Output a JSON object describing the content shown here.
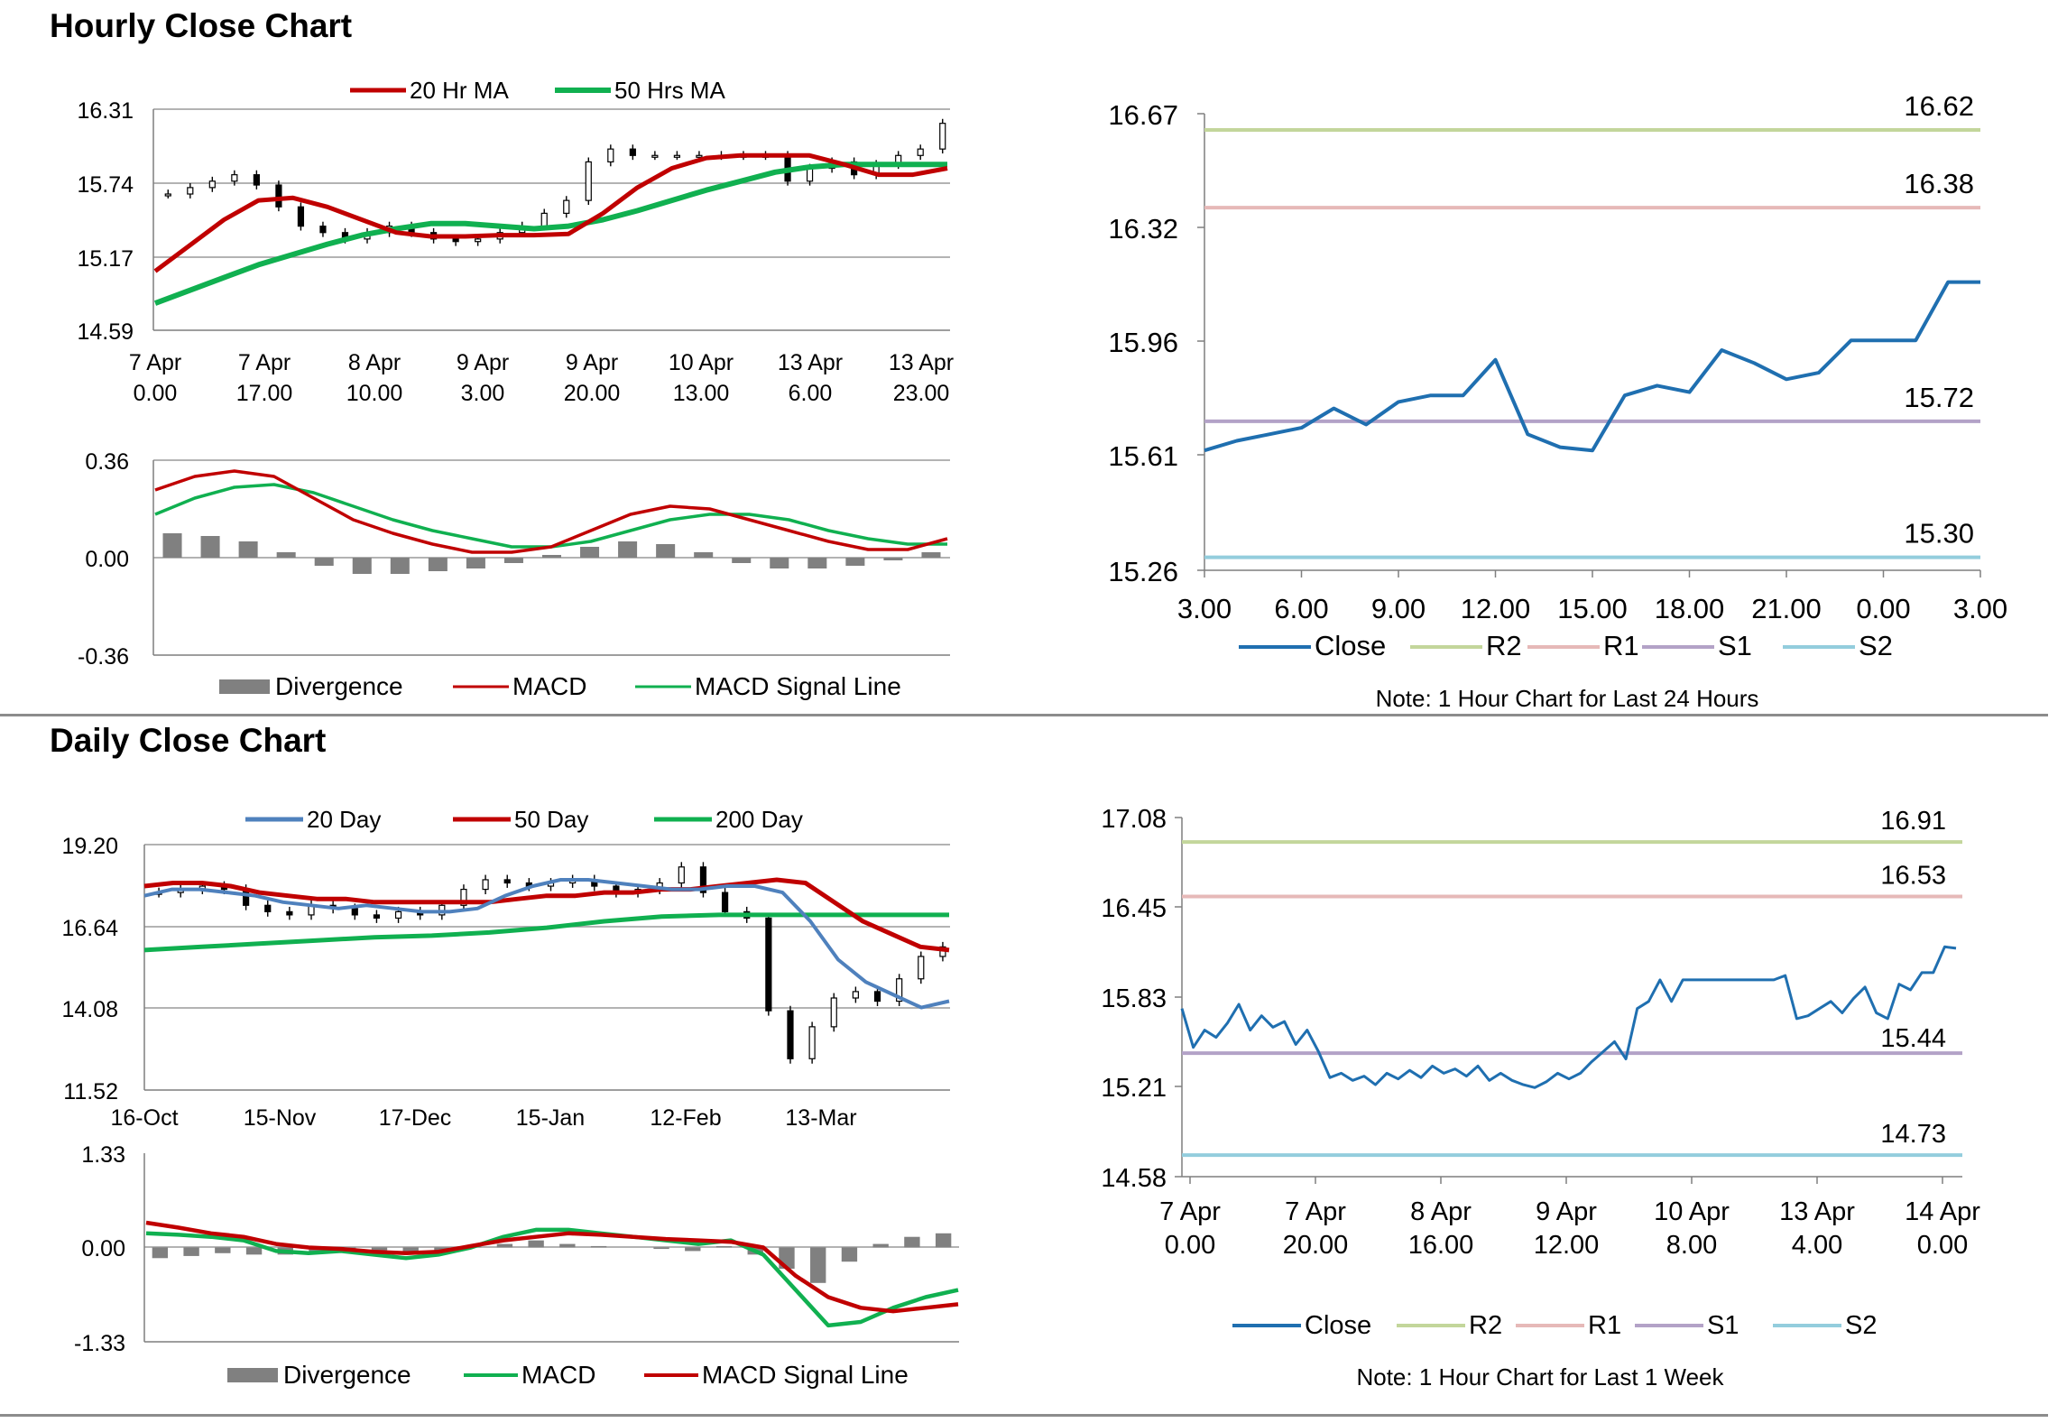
{
  "sections": {
    "hourly_title": "Hourly Close Chart",
    "daily_title": "Daily Close Chart"
  },
  "colors": {
    "red": "#c00000",
    "green": "#10b050",
    "blue": "#4f81bd",
    "close": "#1f6fb0",
    "r2": "#c3d69b",
    "r1": "#e6b9b8",
    "s1": "#b3a2c7",
    "s2": "#93cddd",
    "grey": "#808080"
  },
  "chart_data": [
    {
      "id": "hourly_price",
      "type": "candlestick",
      "legend": [
        "20 Hr MA",
        "50 Hrs MA"
      ],
      "yticks": [
        "16.31",
        "15.74",
        "15.17",
        "14.59"
      ],
      "ylim": [
        14.59,
        16.31
      ],
      "xticks": [
        [
          "7 Apr",
          "0.00"
        ],
        [
          "7 Apr",
          "17.00"
        ],
        [
          "8 Apr",
          "10.00"
        ],
        [
          "9 Apr",
          "3.00"
        ],
        [
          "9 Apr",
          "20.00"
        ],
        [
          "10 Apr",
          "13.00"
        ],
        [
          "13 Apr",
          "6.00"
        ],
        [
          "13 Apr",
          "23.00"
        ]
      ],
      "close": [
        15.65,
        15.7,
        15.75,
        15.8,
        15.72,
        15.55,
        15.4,
        15.35,
        15.3,
        15.35,
        15.4,
        15.35,
        15.3,
        15.28,
        15.3,
        15.35,
        15.4,
        15.5,
        15.6,
        15.9,
        16.0,
        15.95,
        15.95,
        15.95,
        15.95,
        15.95,
        15.95,
        15.95,
        15.75,
        15.85,
        15.9,
        15.8,
        15.88,
        15.95,
        16.0,
        16.2
      ],
      "series": [
        {
          "name": "20 Hr MA",
          "values": [
            15.05,
            15.25,
            15.45,
            15.6,
            15.62,
            15.55,
            15.45,
            15.35,
            15.32,
            15.32,
            15.33,
            15.33,
            15.34,
            15.5,
            15.7,
            15.85,
            15.93,
            15.95,
            15.95,
            15.95,
            15.88,
            15.8,
            15.8,
            15.85
          ]
        },
        {
          "name": "50 Hrs MA",
          "values": [
            14.8,
            14.9,
            15.0,
            15.1,
            15.18,
            15.26,
            15.33,
            15.38,
            15.42,
            15.42,
            15.4,
            15.38,
            15.4,
            15.45,
            15.52,
            15.6,
            15.68,
            15.75,
            15.82,
            15.86,
            15.88,
            15.88,
            15.88,
            15.88
          ]
        }
      ]
    },
    {
      "id": "hourly_macd",
      "type": "line+bar",
      "yticks": [
        "0.36",
        "0.00",
        "-0.36"
      ],
      "ylim": [
        -0.36,
        0.36
      ],
      "legend": [
        "Divergence",
        "MACD",
        "MACD Signal Line"
      ],
      "series": [
        {
          "name": "MACD",
          "values": [
            0.25,
            0.3,
            0.32,
            0.3,
            0.22,
            0.14,
            0.09,
            0.05,
            0.02,
            0.02,
            0.04,
            0.1,
            0.16,
            0.19,
            0.18,
            0.14,
            0.1,
            0.06,
            0.03,
            0.03,
            0.07
          ]
        },
        {
          "name": "MACD Signal Line",
          "values": [
            0.16,
            0.22,
            0.26,
            0.27,
            0.24,
            0.19,
            0.14,
            0.1,
            0.07,
            0.04,
            0.04,
            0.06,
            0.1,
            0.14,
            0.16,
            0.16,
            0.14,
            0.1,
            0.07,
            0.05,
            0.05
          ]
        },
        {
          "name": "Divergence",
          "values": [
            0.09,
            0.08,
            0.06,
            0.02,
            -0.03,
            -0.06,
            -0.06,
            -0.05,
            -0.04,
            -0.02,
            0.01,
            0.04,
            0.06,
            0.05,
            0.02,
            -0.02,
            -0.04,
            -0.04,
            -0.03,
            -0.01,
            0.02
          ]
        }
      ]
    },
    {
      "id": "hourly_close_24h",
      "type": "line",
      "yticks": [
        "16.67",
        "16.32",
        "15.96",
        "15.61",
        "15.26"
      ],
      "ylim": [
        15.26,
        16.67
      ],
      "xticks": [
        "3.00",
        "6.00",
        "9.00",
        "12.00",
        "15.00",
        "18.00",
        "21.00",
        "0.00",
        "3.00"
      ],
      "levels": {
        "R2": 16.62,
        "R1": 16.38,
        "S1": 15.72,
        "S2": 15.3
      },
      "level_labels": [
        "16.62",
        "16.38",
        "15.72",
        "15.30"
      ],
      "legend": [
        "Close",
        "R2",
        "R1",
        "S1",
        "S2"
      ],
      "note": "Note: 1 Hour Chart for Last 24 Hours",
      "values": [
        15.63,
        15.66,
        15.68,
        15.7,
        15.76,
        15.71,
        15.78,
        15.8,
        15.8,
        15.91,
        15.68,
        15.64,
        15.63,
        15.8,
        15.83,
        15.81,
        15.94,
        15.9,
        15.85,
        15.87,
        15.97,
        15.97,
        15.97,
        16.15,
        16.15
      ]
    },
    {
      "id": "daily_price",
      "type": "candlestick",
      "legend": [
        "20 Day",
        "50 Day",
        "200 Day"
      ],
      "yticks": [
        "19.20",
        "16.64",
        "14.08",
        "11.52"
      ],
      "ylim": [
        11.52,
        19.2
      ],
      "xticks": [
        "16-Oct",
        "15-Nov",
        "17-Dec",
        "15-Jan",
        "12-Feb",
        "13-Mar"
      ],
      "close": [
        17.7,
        17.8,
        17.9,
        17.8,
        17.3,
        17.1,
        17.0,
        17.3,
        17.2,
        17.0,
        16.9,
        17.1,
        17.0,
        17.3,
        17.8,
        18.1,
        18.0,
        17.9,
        18.0,
        18.1,
        17.9,
        17.7,
        17.8,
        18.0,
        18.5,
        17.7,
        17.1,
        16.9,
        14.0,
        12.5,
        13.5,
        14.4,
        14.6,
        14.3,
        15.0,
        15.7,
        16.0
      ],
      "series": [
        {
          "name": "20 Day",
          "values": [
            17.6,
            17.8,
            17.8,
            17.7,
            17.6,
            17.4,
            17.3,
            17.2,
            17.3,
            17.2,
            17.1,
            17.1,
            17.2,
            17.6,
            17.9,
            18.1,
            18.1,
            18.0,
            17.9,
            17.8,
            17.8,
            17.9,
            17.9,
            17.7,
            16.8,
            15.6,
            14.9,
            14.5,
            14.1,
            14.3
          ]
        },
        {
          "name": "50 Day",
          "values": [
            17.9,
            18.0,
            18.0,
            17.9,
            17.7,
            17.6,
            17.5,
            17.5,
            17.4,
            17.4,
            17.4,
            17.4,
            17.4,
            17.5,
            17.6,
            17.6,
            17.7,
            17.7,
            17.8,
            17.8,
            17.9,
            18.0,
            18.1,
            18.0,
            17.4,
            16.8,
            16.4,
            16.0,
            15.9
          ]
        },
        {
          "name": "200 Day",
          "values": [
            15.9,
            16.0,
            16.1,
            16.2,
            16.3,
            16.35,
            16.45,
            16.6,
            16.8,
            16.95,
            17.0,
            17.0,
            17.0,
            17.0,
            17.0
          ]
        }
      ]
    },
    {
      "id": "daily_macd",
      "type": "line+bar",
      "yticks": [
        "1.33",
        "0.00",
        "-1.33"
      ],
      "ylim": [
        -1.33,
        1.33
      ],
      "legend": [
        "Divergence",
        "MACD",
        "MACD Signal Line"
      ],
      "series": [
        {
          "name": "MACD",
          "values": [
            0.2,
            0.18,
            0.15,
            0.1,
            -0.05,
            -0.08,
            -0.05,
            -0.1,
            -0.15,
            -0.1,
            0.0,
            0.15,
            0.25,
            0.25,
            0.2,
            0.15,
            0.1,
            0.05,
            0.1,
            -0.1,
            -0.6,
            -1.1,
            -1.05,
            -0.85,
            -0.7,
            -0.6
          ]
        },
        {
          "name": "MACD Signal Line",
          "values": [
            0.35,
            0.28,
            0.2,
            0.15,
            0.05,
            0.0,
            -0.02,
            -0.06,
            -0.08,
            -0.06,
            0.02,
            0.1,
            0.15,
            0.2,
            0.18,
            0.15,
            0.12,
            0.1,
            0.08,
            0.0,
            -0.4,
            -0.7,
            -0.85,
            -0.9,
            -0.85,
            -0.8
          ]
        },
        {
          "name": "Divergence",
          "values": [
            -0.15,
            -0.12,
            -0.08,
            -0.1,
            -0.1,
            -0.07,
            -0.03,
            -0.04,
            -0.06,
            -0.04,
            0.02,
            0.05,
            0.1,
            0.05,
            0.02,
            0.0,
            -0.02,
            -0.05,
            0.02,
            -0.1,
            -0.3,
            -0.5,
            -0.2,
            0.05,
            0.15,
            0.2
          ]
        }
      ]
    },
    {
      "id": "daily_close_1w",
      "type": "line",
      "yticks": [
        "17.08",
        "16.45",
        "15.83",
        "15.21",
        "14.58"
      ],
      "ylim": [
        14.58,
        17.08
      ],
      "xticks": [
        [
          "7 Apr",
          "0.00"
        ],
        [
          "7 Apr",
          "20.00"
        ],
        [
          "8 Apr",
          "16.00"
        ],
        [
          "9 Apr",
          "12.00"
        ],
        [
          "10 Apr",
          "8.00"
        ],
        [
          "13 Apr",
          "4.00"
        ],
        [
          "14 Apr",
          "0.00"
        ]
      ],
      "levels": {
        "R2": 16.91,
        "R1": 16.53,
        "S1": 15.44,
        "S2": 14.73
      },
      "level_labels": [
        "16.91",
        "16.53",
        "15.44",
        "14.73"
      ],
      "legend": [
        "Close",
        "R2",
        "R1",
        "S1",
        "S2"
      ],
      "note": "Note: 1 Hour Chart for Last 1 Week",
      "values": [
        15.75,
        15.48,
        15.6,
        15.55,
        15.65,
        15.78,
        15.6,
        15.7,
        15.62,
        15.66,
        15.5,
        15.6,
        15.45,
        15.27,
        15.3,
        15.25,
        15.28,
        15.22,
        15.3,
        15.26,
        15.32,
        15.27,
        15.35,
        15.3,
        15.33,
        15.28,
        15.35,
        15.25,
        15.3,
        15.25,
        15.22,
        15.2,
        15.24,
        15.3,
        15.26,
        15.3,
        15.38,
        15.45,
        15.52,
        15.4,
        15.75,
        15.8,
        15.95,
        15.8,
        15.95,
        15.95,
        15.95,
        15.95,
        15.95,
        15.95,
        15.95,
        15.95,
        15.95,
        15.98,
        15.68,
        15.7,
        15.75,
        15.8,
        15.72,
        15.82,
        15.9,
        15.72,
        15.68,
        15.92,
        15.88,
        16.0,
        16.0,
        16.18,
        16.17
      ]
    }
  ]
}
